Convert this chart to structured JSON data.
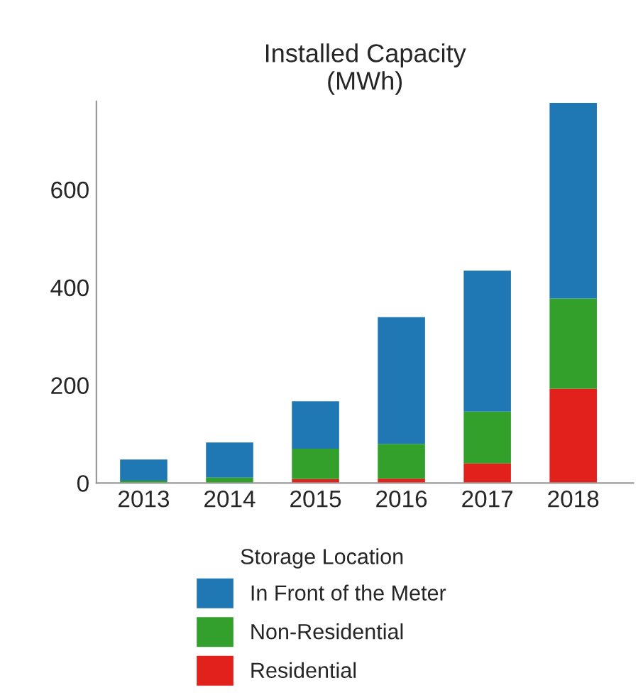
{
  "chart_data": {
    "type": "bar",
    "title": "Installed Capacity\n(MWh)",
    "legend_title": "Storage Location",
    "stacked": true,
    "categories": [
      "2013",
      "2014",
      "2015",
      "2016",
      "2017",
      "2018"
    ],
    "series": [
      {
        "name": "Residential",
        "color": "#e3211c",
        "values": [
          0,
          null,
          8,
          9,
          40,
          193
        ]
      },
      {
        "name": "Non-Residential",
        "color": "#33a02c",
        "values": [
          5,
          11,
          62,
          71,
          106,
          184
        ]
      },
      {
        "name": "In Front of the Meter",
        "color": "#1f78b4",
        "values": [
          43,
          72,
          97,
          259,
          288,
          400
        ]
      }
    ],
    "ylim": [
      0,
      780
    ],
    "yticks": [
      0,
      200,
      400,
      600
    ],
    "grid": false,
    "legend": "bottom"
  }
}
